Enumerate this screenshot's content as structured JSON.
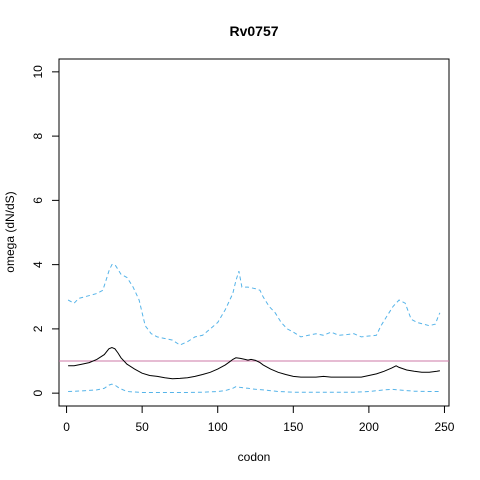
{
  "chart_data": {
    "type": "line",
    "title": "Rv0757",
    "xlabel": "codon",
    "ylabel": "omega (dN/dS)",
    "xlim": [
      -5,
      253
    ],
    "ylim": [
      -0.4,
      10.4
    ],
    "x_ticks": [
      0,
      50,
      100,
      150,
      200,
      250
    ],
    "y_ticks": [
      0,
      2,
      4,
      6,
      8,
      10
    ],
    "grid": false,
    "reference_line": {
      "y": 1,
      "color": "#cc79a7"
    },
    "series": [
      {
        "role": "estimate",
        "color": "#000000",
        "dash": "solid",
        "x": [
          1,
          5,
          10,
          15,
          20,
          25,
          28,
          30,
          32,
          34,
          36,
          40,
          45,
          50,
          55,
          60,
          65,
          70,
          75,
          80,
          85,
          90,
          95,
          100,
          105,
          108,
          110,
          112,
          115,
          118,
          120,
          122,
          125,
          128,
          130,
          135,
          140,
          145,
          150,
          155,
          160,
          165,
          170,
          175,
          180,
          185,
          190,
          195,
          200,
          205,
          210,
          215,
          218,
          220,
          225,
          230,
          235,
          240,
          245,
          247
        ],
        "y": [
          0.85,
          0.85,
          0.9,
          0.95,
          1.05,
          1.2,
          1.38,
          1.42,
          1.38,
          1.25,
          1.1,
          0.9,
          0.75,
          0.62,
          0.55,
          0.52,
          0.48,
          0.45,
          0.46,
          0.48,
          0.52,
          0.58,
          0.65,
          0.75,
          0.88,
          0.98,
          1.05,
          1.1,
          1.08,
          1.05,
          1.03,
          1.05,
          1.02,
          0.95,
          0.88,
          0.75,
          0.65,
          0.58,
          0.52,
          0.5,
          0.5,
          0.5,
          0.52,
          0.5,
          0.5,
          0.5,
          0.5,
          0.5,
          0.55,
          0.6,
          0.68,
          0.78,
          0.85,
          0.8,
          0.72,
          0.68,
          0.65,
          0.65,
          0.68,
          0.7
        ]
      },
      {
        "role": "upper bound",
        "color": "#56b4e9",
        "dash": "dashed",
        "x": [
          1,
          5,
          8,
          12,
          16,
          20,
          24,
          26,
          28,
          30,
          32,
          34,
          36,
          40,
          44,
          48,
          52,
          56,
          60,
          65,
          70,
          75,
          80,
          85,
          90,
          95,
          100,
          105,
          108,
          110,
          112,
          114,
          116,
          120,
          125,
          128,
          130,
          134,
          138,
          142,
          146,
          150,
          155,
          160,
          165,
          170,
          175,
          180,
          185,
          190,
          195,
          200,
          205,
          208,
          212,
          216,
          220,
          224,
          228,
          232,
          236,
          240,
          244,
          246,
          247
        ],
        "y": [
          2.9,
          2.8,
          2.95,
          3.0,
          3.05,
          3.1,
          3.2,
          3.5,
          3.8,
          4.0,
          4.0,
          3.85,
          3.7,
          3.6,
          3.3,
          2.9,
          2.1,
          1.85,
          1.75,
          1.7,
          1.65,
          1.5,
          1.6,
          1.75,
          1.8,
          2.0,
          2.2,
          2.6,
          2.9,
          3.1,
          3.5,
          3.8,
          3.3,
          3.3,
          3.25,
          3.2,
          3.0,
          2.7,
          2.5,
          2.2,
          2.0,
          1.9,
          1.75,
          1.8,
          1.85,
          1.8,
          1.9,
          1.8,
          1.82,
          1.85,
          1.75,
          1.78,
          1.8,
          2.1,
          2.4,
          2.7,
          2.9,
          2.8,
          2.3,
          2.2,
          2.15,
          2.1,
          2.15,
          2.4,
          2.5
        ]
      },
      {
        "role": "lower bound",
        "color": "#56b4e9",
        "dash": "dashed",
        "x": [
          1,
          10,
          20,
          25,
          28,
          30,
          32,
          35,
          40,
          50,
          60,
          70,
          80,
          90,
          100,
          105,
          110,
          112,
          115,
          120,
          125,
          130,
          140,
          150,
          160,
          170,
          180,
          190,
          200,
          210,
          215,
          220,
          225,
          230,
          240,
          247
        ],
        "y": [
          0.05,
          0.07,
          0.1,
          0.15,
          0.25,
          0.28,
          0.25,
          0.15,
          0.05,
          0.02,
          0.02,
          0.02,
          0.02,
          0.03,
          0.05,
          0.08,
          0.15,
          0.2,
          0.18,
          0.15,
          0.12,
          0.1,
          0.05,
          0.03,
          0.03,
          0.03,
          0.03,
          0.03,
          0.05,
          0.1,
          0.12,
          0.1,
          0.08,
          0.06,
          0.05,
          0.05
        ]
      }
    ]
  }
}
